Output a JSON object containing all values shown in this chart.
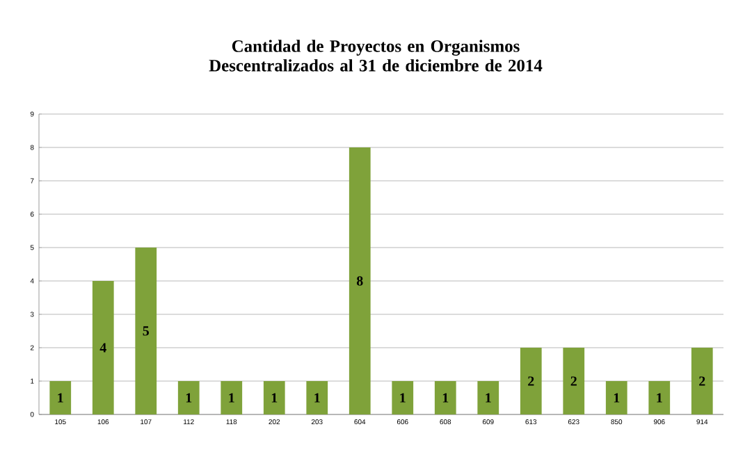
{
  "chart_data": {
    "type": "bar",
    "title": "Cantidad de Proyectos en Organismos Descentralizados al 31 de diciembre de 2014",
    "categories": [
      "105",
      "106",
      "107",
      "112",
      "118",
      "202",
      "203",
      "604",
      "606",
      "608",
      "609",
      "613",
      "623",
      "850",
      "906",
      "914"
    ],
    "values": [
      1,
      4,
      5,
      1,
      1,
      1,
      1,
      8,
      1,
      1,
      1,
      2,
      2,
      1,
      1,
      2
    ],
    "color": "#7fa23a",
    "ylim": [
      0,
      9
    ],
    "yticks": [
      0,
      1,
      2,
      3,
      4,
      5,
      6,
      7,
      8,
      9
    ],
    "grid": "y",
    "data_labels": true
  }
}
